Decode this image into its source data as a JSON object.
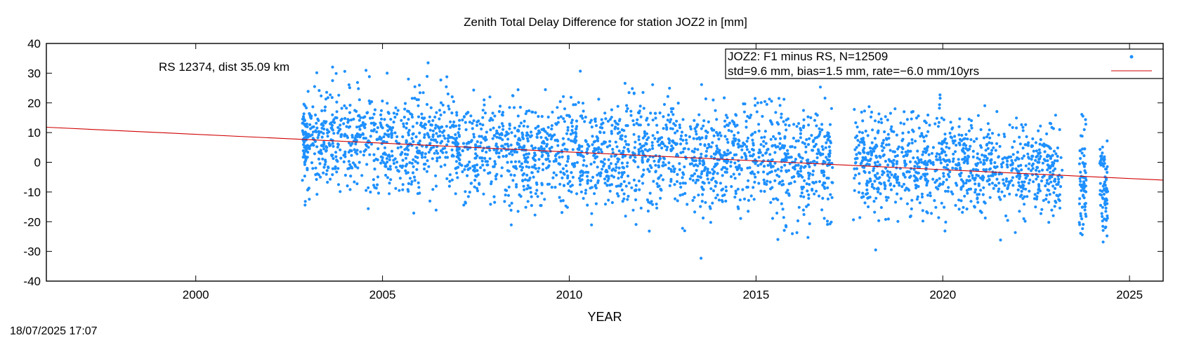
{
  "chart_data": {
    "type": "scatter",
    "title": "Zenith Total Delay Difference for station JOZ2 in [mm]",
    "xlabel": "YEAR",
    "ylabel": "",
    "xlim": [
      1996,
      2025.9
    ],
    "ylim": [
      -40,
      40
    ],
    "xticks": [
      2000,
      2005,
      2010,
      2015,
      2020,
      2025
    ],
    "yticks": [
      40,
      30,
      20,
      10,
      0,
      -10,
      -20,
      -30,
      -40
    ],
    "annotation": "RS 12374, dist 35.09 km",
    "timestamp": "18/07/2025 17:07",
    "grid": false,
    "legend_position": "top-right",
    "legend": {
      "line1": "JOZ2: F1 minus RS, N=12509",
      "line2": "std=9.6 mm, bias=1.5 mm, rate=−6.0 mm/10yrs"
    },
    "series": [
      {
        "kind": "points",
        "color": "#1e90ff",
        "n": 12509,
        "std": 9.6,
        "bias": 1.5,
        "segments": [
          {
            "start": 2002.85,
            "end": 2003.0,
            "mean": 7.0,
            "std": 6.5
          },
          {
            "start": 2003.0,
            "end": 2005.0,
            "mean": 8.0,
            "std": 8.5
          },
          {
            "start": 2005.0,
            "end": 2007.0,
            "mean": 7.0,
            "std": 8.5
          },
          {
            "start": 2007.0,
            "end": 2009.0,
            "mean": 4.0,
            "std": 9.0
          },
          {
            "start": 2009.0,
            "end": 2011.0,
            "mean": 3.0,
            "std": 9.0
          },
          {
            "start": 2011.0,
            "end": 2013.0,
            "mean": 3.0,
            "std": 9.0
          },
          {
            "start": 2013.0,
            "end": 2015.0,
            "mean": 2.0,
            "std": 9.0
          },
          {
            "start": 2015.0,
            "end": 2017.05,
            "mean": 0.5,
            "std": 9.5
          },
          {
            "start": 2017.6,
            "end": 2019.0,
            "mean": 0.0,
            "std": 8.5
          },
          {
            "start": 2019.0,
            "end": 2020.8,
            "mean": 1.0,
            "std": 8.0
          },
          {
            "start": 2020.8,
            "end": 2023.2,
            "mean": -2.0,
            "std": 7.5
          },
          {
            "start": 2023.65,
            "end": 2023.85,
            "mean": -6.0,
            "std": 9.0
          },
          {
            "start": 2024.2,
            "end": 2024.42,
            "mean": -8.0,
            "std": 9.0
          }
        ]
      },
      {
        "kind": "line",
        "color": "#d00000",
        "points": [
          [
            1996,
            11.8
          ],
          [
            2025.9,
            -6.0
          ]
        ]
      }
    ]
  }
}
